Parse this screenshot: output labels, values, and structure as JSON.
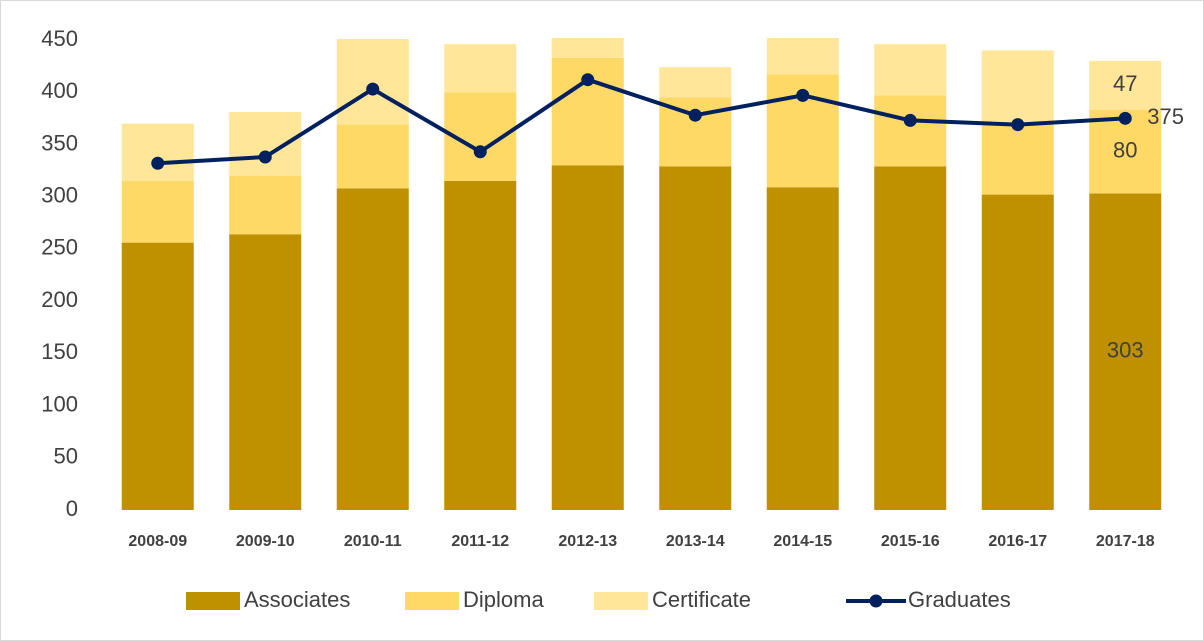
{
  "chart_data": {
    "type": "stacked_bar_line",
    "categories": [
      "2008-09",
      "2009-10",
      "2010-11",
      "2011-12",
      "2012-13",
      "2013-14",
      "2014-15",
      "2015-16",
      "2016-17",
      "2017-18"
    ],
    "series": [
      {
        "name": "Associates",
        "type": "bar",
        "color": "#bf9000",
        "values": [
          256,
          264,
          308,
          315,
          330,
          329,
          309,
          329,
          302,
          303
        ],
        "value_labels": [
          null,
          null,
          null,
          null,
          null,
          null,
          null,
          null,
          null,
          "303"
        ]
      },
      {
        "name": "Diploma",
        "type": "bar",
        "color": "#ffd966",
        "values": [
          59,
          56,
          61,
          85,
          103,
          66,
          108,
          68,
          68,
          80
        ],
        "value_labels": [
          null,
          null,
          null,
          null,
          null,
          null,
          null,
          null,
          null,
          "80"
        ]
      },
      {
        "name": "Certificate",
        "type": "bar",
        "color": "#ffe699",
        "values": [
          55,
          61,
          82,
          46,
          19,
          29,
          35,
          49,
          70,
          47
        ],
        "value_labels": [
          null,
          null,
          null,
          null,
          null,
          null,
          null,
          null,
          null,
          "47"
        ]
      },
      {
        "name": "Graduates",
        "type": "line",
        "color": "#002060",
        "values": [
          332,
          338,
          403,
          343,
          412,
          378,
          397,
          373,
          369,
          375
        ],
        "value_labels": [
          null,
          null,
          null,
          null,
          null,
          null,
          null,
          null,
          null,
          "375"
        ]
      }
    ],
    "ylim": [
      0,
      450
    ],
    "yticks": [
      0,
      50,
      100,
      150,
      200,
      250,
      300,
      350,
      400,
      450
    ],
    "grid": false,
    "legend": "bottom"
  }
}
